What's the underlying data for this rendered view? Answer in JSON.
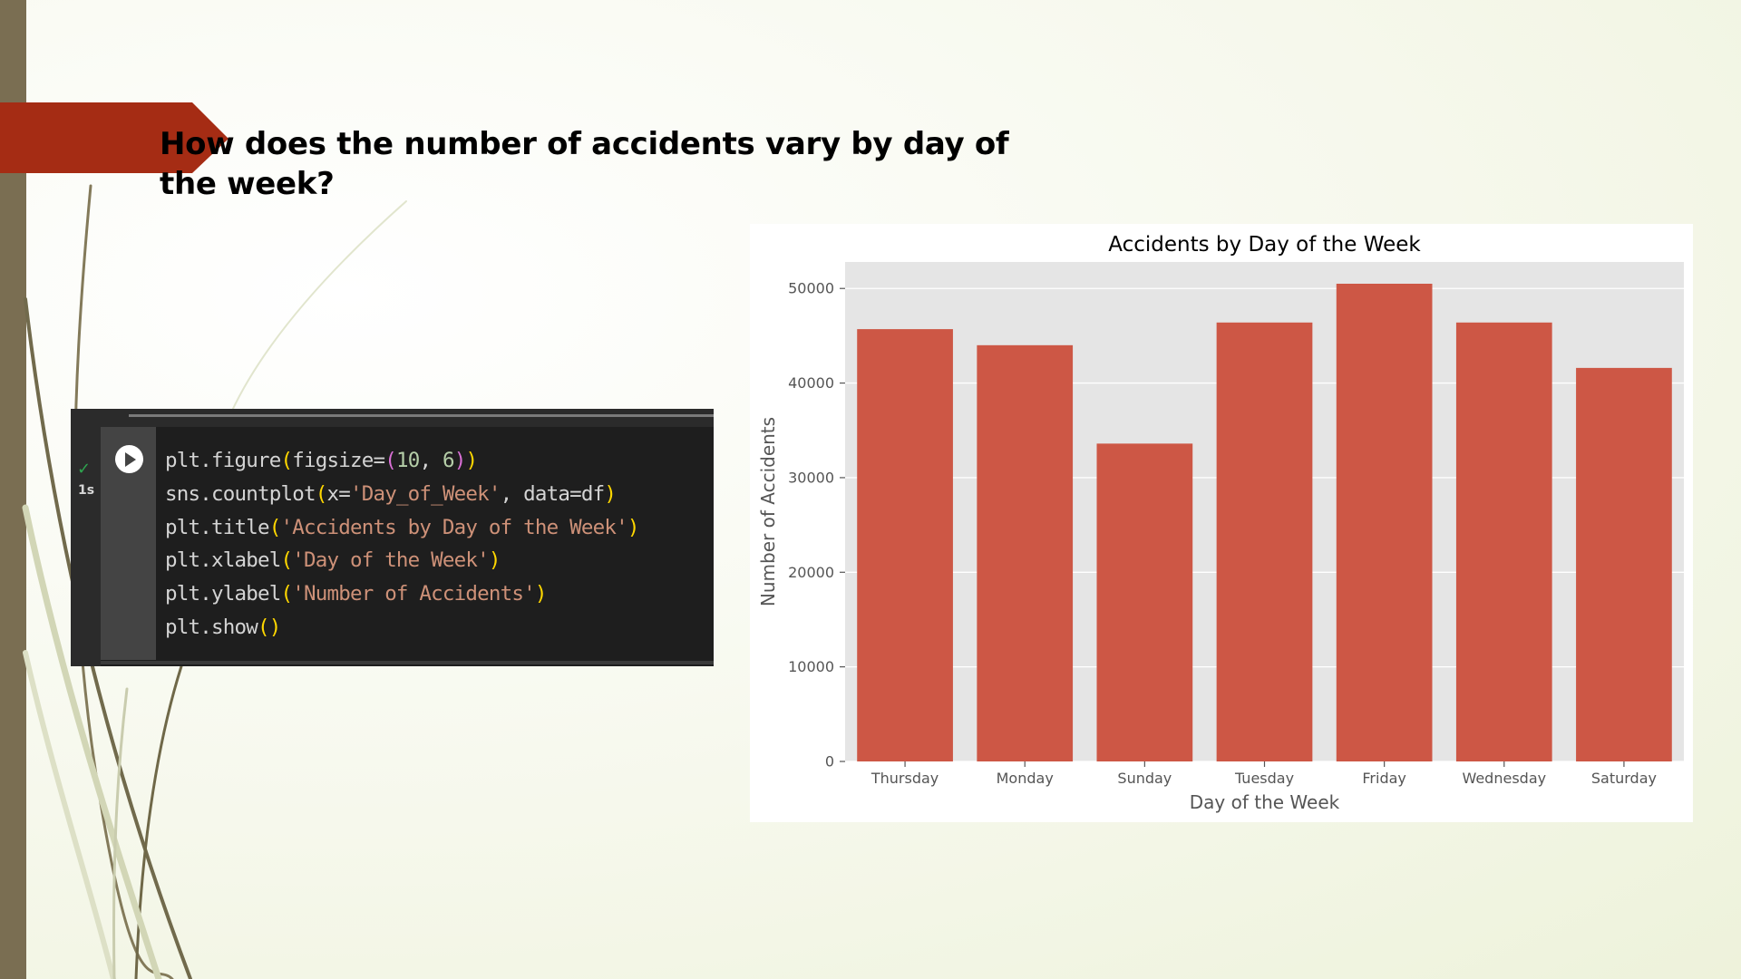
{
  "slide": {
    "title": "How does the number of accidents vary by day of the week?",
    "accent_color": "#a52c14",
    "strip_color": "#7a6e52"
  },
  "code_cell": {
    "status_icon": "check-icon",
    "exec_time": "1s",
    "run_icon": "play-icon",
    "lines": [
      "plt.figure(figsize=(10, 6))",
      "sns.countplot(x='Day_of_Week', data=df)",
      "plt.title('Accidents by Day of the Week')",
      "plt.xlabel('Day of the Week')",
      "plt.ylabel('Number of Accidents')",
      "plt.show()"
    ]
  },
  "chart_data": {
    "type": "bar",
    "title": "Accidents by Day of the Week",
    "xlabel": "Day of the Week",
    "ylabel": "Number of Accidents",
    "categories": [
      "Thursday",
      "Monday",
      "Sunday",
      "Tuesday",
      "Friday",
      "Wednesday",
      "Saturday"
    ],
    "values": [
      45700,
      44000,
      33600,
      46400,
      50500,
      46400,
      41600
    ],
    "ylim": [
      0,
      52800
    ],
    "yticks": [
      0,
      10000,
      20000,
      30000,
      40000,
      50000
    ],
    "grid": true,
    "bar_color": "#cd5745",
    "plot_background": "#e5e5e5"
  }
}
